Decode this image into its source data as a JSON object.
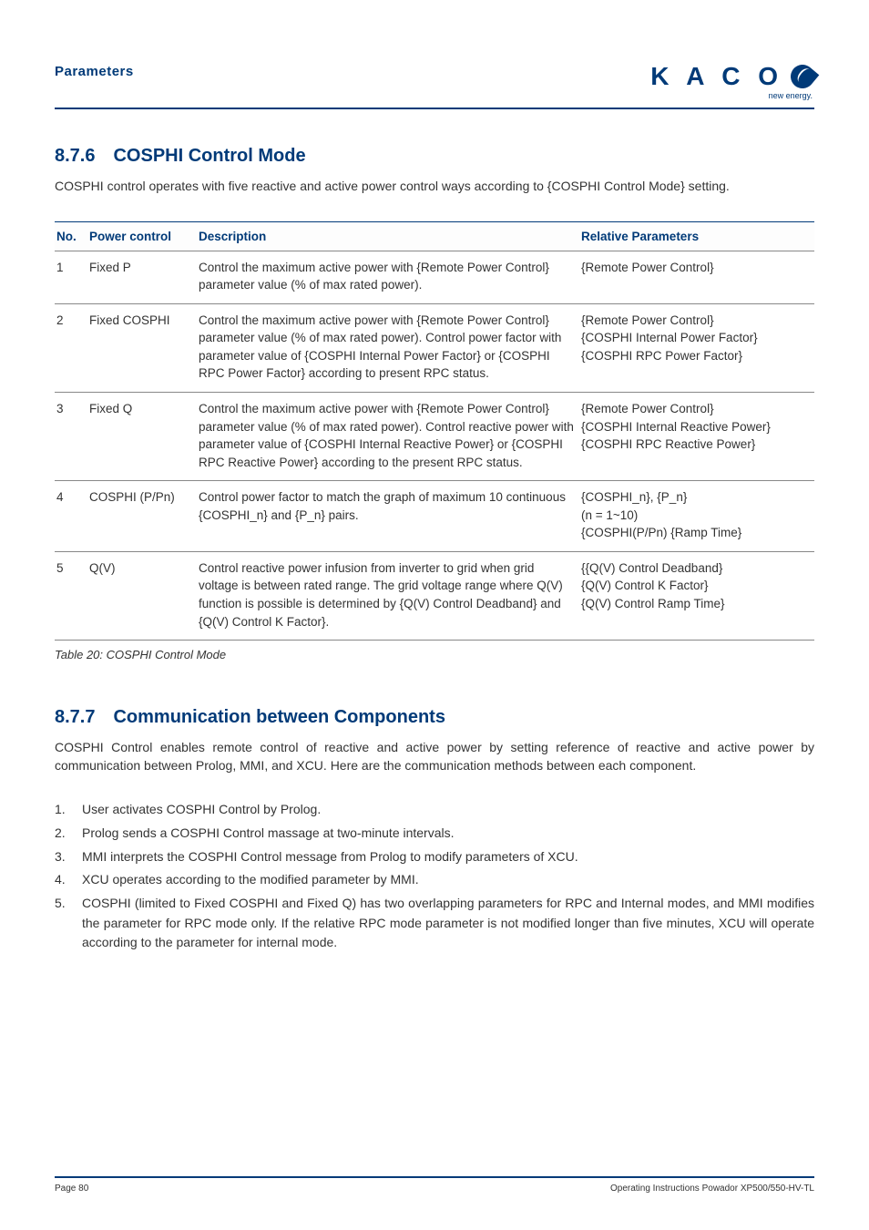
{
  "header": {
    "section_label": "Parameters",
    "logo_text": "K A C O",
    "logo_sub": "new energy."
  },
  "sections": {
    "s1": {
      "num": "8.7.6",
      "title": "COSPHI Control Mode",
      "intro": "COSPHI control operates with five reactive and active power control ways according to {COSPHI Control Mode} setting."
    },
    "s2": {
      "num": "8.7.7",
      "title": "Communication between Components",
      "intro": "COSPHI Control enables remote control of reactive and active power by setting reference of reactive and active power by communication between Prolog, MMI, and XCU. Here are the communication methods between each component."
    }
  },
  "table": {
    "headers": {
      "no": "No.",
      "pc": "Power control",
      "desc": "Description",
      "rel": "Relative Parameters"
    },
    "rows": [
      {
        "no": "1",
        "pc": "Fixed P",
        "desc": "Control the maximum active power with {Remote Power Control} parameter value (% of max rated power).",
        "rel": [
          "{Remote Power Control}"
        ]
      },
      {
        "no": "2",
        "pc": "Fixed COSPHI",
        "desc": "Control the maximum active power with {Remote Power Control} parameter value (% of max rated power). Control power factor with parameter value of {COSPHI Internal Power Factor} or {COSPHI RPC Power Factor} according to present RPC status.",
        "rel": [
          "{Remote Power Control}",
          "{COSPHI Internal Power Factor}",
          "{COSPHI RPC Power Factor}"
        ]
      },
      {
        "no": "3",
        "pc": "Fixed Q",
        "desc": "Control the maximum active power with {Remote Power Control} parameter value (% of max rated power). Control reactive power with parameter value of {COSPHI Internal Reactive Power} or {COSPHI RPC Reactive Power} according to the present RPC status.",
        "rel": [
          "{Remote Power Control}",
          "{COSPHI Internal Reactive Power}",
          "{COSPHI RPC Reactive Power}"
        ]
      },
      {
        "no": "4",
        "pc": "COSPHI (P/Pn)",
        "desc": "Control power factor to match the graph of maximum 10 continuous {COSPHI_n} and {P_n} pairs.",
        "rel": [
          "{COSPHI_n}, {P_n}",
          "(n = 1~10)",
          "{COSPHI(P/Pn) {Ramp Time}"
        ]
      },
      {
        "no": "5",
        "pc": "Q(V)",
        "desc": "Control reactive power infusion from inverter to grid when grid voltage is between rated range. The grid voltage range where Q(V) function is possible is determined by {Q(V) Control Deadband} and {Q(V) Control K Factor}.",
        "rel": [
          "{{Q(V) Control Deadband}",
          "{Q(V) Control K Factor}",
          "{Q(V) Control Ramp Time}"
        ]
      }
    ],
    "caption": "Table 20:  COSPHI Control Mode"
  },
  "list": [
    "User activates COSPHI Control by Prolog.",
    "Prolog sends a COSPHI Control massage at two-minute intervals.",
    "MMI interprets the COSPHI Control message from Prolog to modify parameters of XCU.",
    "XCU operates according to the modified parameter by MMI.",
    "COSPHI (limited to Fixed COSPHI and Fixed Q) has two overlapping parameters for RPC and Internal modes, and MMI modifies the parameter for RPC mode only. If the relative RPC mode parameter is not modified longer than five minutes, XCU will operate according to the parameter for internal mode."
  ],
  "footer": {
    "left": "Page 80",
    "right": "Operating Instructions Powador XP500/550-HV-TL"
  },
  "colors": {
    "brand": "#003a78",
    "text": "#333333",
    "rule": "#888888"
  }
}
